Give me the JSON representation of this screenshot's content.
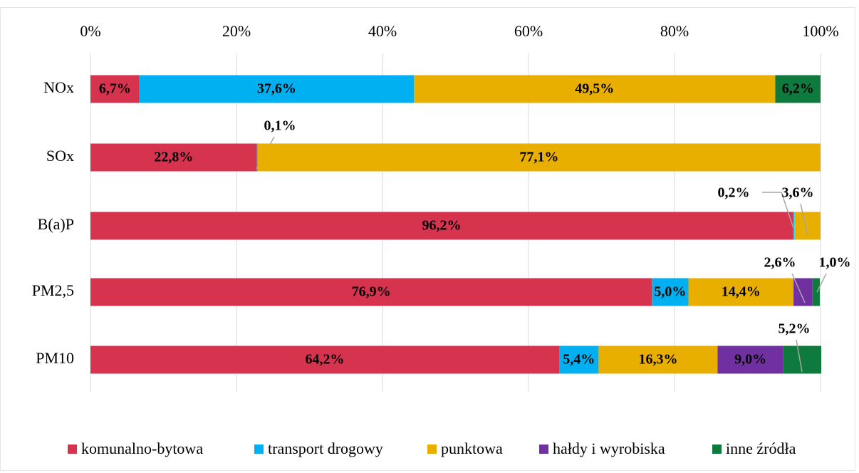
{
  "chart_data": {
    "type": "stacked-bar-horizontal",
    "categories": [
      "NOx",
      "SOx",
      "B(a)P",
      "PM2,5",
      "PM10"
    ],
    "series": [
      {
        "name": "komunalno-bytowa",
        "color": "#d6334f",
        "values": [
          6.7,
          22.8,
          96.2,
          76.9,
          64.2
        ],
        "value_labels": [
          "6,7%",
          "22,8%",
          "96,2%",
          "76,9%",
          "64,2%"
        ]
      },
      {
        "name": "transport drogowy",
        "color": "#00b0f0",
        "values": [
          37.6,
          0.1,
          0.2,
          5.0,
          5.4
        ],
        "value_labels": [
          "37,6%",
          "0,1%",
          "0,2%",
          "5,0%",
          "5,4%"
        ]
      },
      {
        "name": "punktowa",
        "color": "#e8ae00",
        "values": [
          49.5,
          77.1,
          3.6,
          14.4,
          16.3
        ],
        "value_labels": [
          "49,5%",
          "77,1%",
          "3,6%",
          "14,4%",
          "16,3%"
        ]
      },
      {
        "name": "hałdy i wyrobiska",
        "color": "#7030a0",
        "values": [
          null,
          null,
          null,
          2.6,
          9.0
        ],
        "value_labels": [
          null,
          null,
          null,
          "2,6%",
          "9,0%"
        ]
      },
      {
        "name": "inne źródła",
        "color": "#0f7a3d",
        "values": [
          6.2,
          null,
          null,
          1.0,
          5.2
        ],
        "value_labels": [
          "6,2%",
          null,
          null,
          "1,0%",
          "5,2%"
        ]
      }
    ],
    "xlim": [
      0,
      100
    ],
    "xticks": [
      {
        "value": 0,
        "label": "0%"
      },
      {
        "value": 20,
        "label": "20%"
      },
      {
        "value": 40,
        "label": "40%"
      },
      {
        "value": 60,
        "label": "60%"
      },
      {
        "value": 80,
        "label": "80%"
      },
      {
        "value": 100,
        "label": "100%"
      }
    ],
    "grid": true,
    "legend": "bottom"
  }
}
